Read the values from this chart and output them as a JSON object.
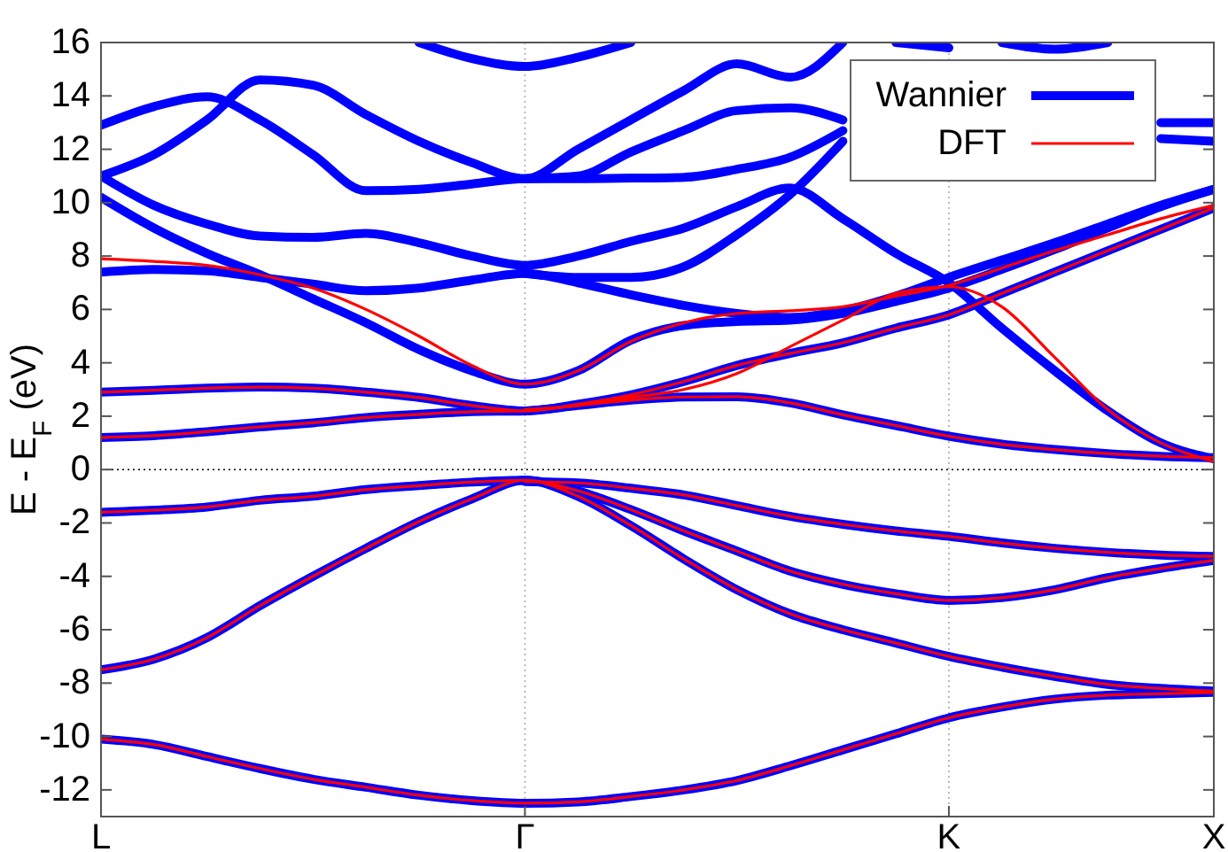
{
  "chart_data": {
    "type": "line",
    "ylabel": "E - E$_{F}$ (eV)",
    "categories": [
      "L",
      null,
      null,
      null,
      null,
      null,
      null,
      null,
      "Γ",
      null,
      null,
      null,
      null,
      null,
      null,
      null,
      "K",
      null,
      null,
      null,
      null,
      "X"
    ],
    "ylim": [
      -13,
      16
    ],
    "yticks": [
      -12,
      -10,
      -8,
      -6,
      -4,
      -2,
      0,
      2,
      4,
      6,
      8,
      10,
      12,
      14,
      16
    ],
    "grid": "x",
    "legend": "top right",
    "ref_lines": [
      {
        "axis": "y",
        "value": 0,
        "line_style": "dotted",
        "color": "#000000"
      }
    ],
    "series": [
      {
        "name": "Wannier",
        "color": "#0000ff",
        "values": [
          -10.1,
          -10.3,
          -10.75,
          -11.2,
          -11.6,
          -11.9,
          -12.2,
          -12.4,
          -12.5,
          -12.45,
          -12.25,
          -12.0,
          -11.65,
          -11.1,
          -10.5,
          -9.9,
          -9.3,
          -8.9,
          -8.6,
          -8.45,
          -8.4,
          -8.35
        ]
      },
      {
        "color": "#0000ff",
        "values": [
          -7.5,
          -7.1,
          -6.3,
          -5.1,
          -4.0,
          -2.95,
          -1.95,
          -1.1,
          -0.4,
          -1.0,
          -2.1,
          -3.35,
          -4.5,
          -5.4,
          -6.0,
          -6.5,
          -7.0,
          -7.4,
          -7.75,
          -8.05,
          -8.2,
          -8.3
        ]
      },
      {
        "color": "#0000ff",
        "values": [
          -1.6,
          -1.52,
          -1.4,
          -1.15,
          -1.0,
          -0.75,
          -0.6,
          -0.47,
          -0.4,
          -0.8,
          -1.5,
          -2.3,
          -3.05,
          -3.8,
          -4.3,
          -4.65,
          -4.9,
          -4.8,
          -4.5,
          -4.05,
          -3.7,
          -3.4
        ]
      },
      {
        "color": "#0000ff",
        "values": [
          null,
          null,
          null,
          null,
          null,
          null,
          null,
          null,
          -0.45,
          -0.5,
          -0.7,
          -0.95,
          -1.35,
          -1.75,
          -2.05,
          -2.3,
          -2.5,
          -2.75,
          -2.95,
          -3.1,
          -3.2,
          -3.25
        ]
      },
      {
        "color": "#0000ff",
        "values": [
          1.2,
          1.27,
          1.42,
          1.6,
          1.75,
          1.95,
          2.07,
          2.17,
          2.2,
          2.4,
          2.6,
          2.72,
          2.73,
          2.5,
          2.05,
          1.65,
          1.25,
          0.95,
          0.75,
          0.6,
          0.5,
          0.45
        ]
      },
      {
        "color": "#0000ff",
        "values": [
          2.9,
          2.97,
          3.05,
          3.09,
          3.05,
          2.9,
          2.7,
          2.4,
          2.2,
          2.45,
          2.8,
          3.3,
          3.9,
          4.35,
          4.75,
          5.3,
          5.8,
          6.6,
          7.4,
          8.2,
          9.0,
          9.8
        ]
      },
      {
        "color": "#0000ff",
        "values": [
          10.2,
          9.05,
          8.1,
          7.3,
          6.4,
          5.5,
          4.5,
          3.7,
          3.2,
          3.7,
          4.85,
          5.4,
          5.55,
          5.6,
          5.85,
          6.3,
          6.8,
          7.5,
          8.25,
          9.05,
          9.85,
          10.5
        ]
      },
      {
        "color": "#0000ff",
        "values": [
          12.9,
          13.6,
          13.97,
          13.1,
          11.8,
          10.45,
          10.5,
          10.7,
          10.9,
          10.9,
          10.92,
          10.95,
          11.25,
          11.7,
          12.7,
          null,
          null,
          null,
          null,
          null,
          12.4,
          12.3
        ]
      },
      {
        "color": "#0000ff",
        "values": [
          11.0,
          11.8,
          13.1,
          14.6,
          14.4,
          13.3,
          12.3,
          11.5,
          10.9,
          12.0,
          13.1,
          14.2,
          15.2,
          14.7,
          16.0,
          null,
          null,
          null,
          null,
          null,
          null,
          null
        ]
      },
      {
        "color": "#0000ff",
        "values": [
          null,
          null,
          null,
          null,
          null,
          null,
          null,
          null,
          10.9,
          11.0,
          11.9,
          12.7,
          13.45,
          13.55,
          13.1,
          null,
          null,
          null,
          null,
          null,
          13.0,
          13.0
        ]
      },
      {
        "color": "#0000ff",
        "values": [
          11.0,
          9.9,
          9.2,
          8.75,
          8.7,
          8.85,
          8.5,
          8.0,
          7.65,
          8.0,
          8.55,
          9.05,
          9.85,
          10.55,
          9.4,
          8.1,
          7.0,
          5.3,
          3.7,
          2.2,
          1.0,
          0.4
        ]
      },
      {
        "color": "#0000ff",
        "values": [
          7.4,
          7.5,
          7.45,
          7.2,
          6.95,
          6.7,
          6.8,
          7.1,
          7.35,
          7.0,
          6.55,
          6.15,
          5.85,
          5.7,
          5.95,
          6.5,
          7.2,
          7.85,
          8.5,
          9.2,
          9.9,
          10.5
        ]
      },
      {
        "color": "#0000ff",
        "values": [
          null,
          null,
          null,
          null,
          null,
          null,
          null,
          null,
          7.35,
          7.2,
          7.2,
          7.6,
          8.8,
          10.3,
          12.3,
          null,
          null,
          null,
          null,
          null,
          null,
          null
        ]
      },
      {
        "color": "#0000ff",
        "values": [
          null,
          null,
          null,
          null,
          null,
          null,
          16.0,
          15.4,
          15.1,
          15.45,
          16.0,
          null,
          null,
          null,
          null,
          null,
          null,
          null,
          null,
          null,
          null,
          null
        ]
      },
      {
        "color": "#0000ff",
        "values": [
          null,
          null,
          null,
          null,
          null,
          null,
          null,
          null,
          null,
          null,
          null,
          null,
          null,
          null,
          null,
          16.0,
          15.8,
          null,
          null,
          null,
          null,
          null
        ]
      },
      {
        "color": "#0000ff",
        "values": [
          null,
          null,
          null,
          null,
          null,
          null,
          null,
          null,
          null,
          null,
          null,
          null,
          null,
          null,
          null,
          null,
          null,
          16.0,
          15.75,
          16.0,
          null,
          null
        ]
      },
      {
        "name": "DFT",
        "color": "#ff0000",
        "values": [
          -10.1,
          -10.3,
          -10.75,
          -11.2,
          -11.6,
          -11.9,
          -12.2,
          -12.4,
          -12.5,
          -12.45,
          -12.25,
          -12.0,
          -11.65,
          -11.1,
          -10.5,
          -9.9,
          -9.3,
          -8.9,
          -8.6,
          -8.45,
          -8.4,
          -8.35
        ]
      },
      {
        "color": "#ff0000",
        "values": [
          -7.5,
          -7.1,
          -6.3,
          -5.1,
          -4.0,
          -2.95,
          -1.95,
          -1.1,
          -0.4,
          -1.0,
          -2.1,
          -3.35,
          -4.5,
          -5.4,
          -6.0,
          -6.5,
          -7.0,
          -7.4,
          -7.75,
          -8.05,
          -8.2,
          -8.3
        ]
      },
      {
        "color": "#ff0000",
        "values": [
          -1.6,
          -1.52,
          -1.4,
          -1.15,
          -1.0,
          -0.75,
          -0.6,
          -0.47,
          -0.4,
          -0.8,
          -1.5,
          -2.3,
          -3.05,
          -3.8,
          -4.3,
          -4.65,
          -4.9,
          -4.8,
          -4.5,
          -4.05,
          -3.7,
          -3.4
        ]
      },
      {
        "color": "#ff0000",
        "values": [
          null,
          null,
          null,
          null,
          null,
          null,
          null,
          null,
          -0.45,
          -0.5,
          -0.7,
          -0.95,
          -1.35,
          -1.75,
          -2.05,
          -2.3,
          -2.5,
          -2.75,
          -2.95,
          -3.1,
          -3.2,
          -3.25
        ]
      },
      {
        "color": "#ff0000",
        "values": [
          1.2,
          1.27,
          1.42,
          1.6,
          1.75,
          1.95,
          2.07,
          2.17,
          2.2,
          2.4,
          2.6,
          2.72,
          2.73,
          2.5,
          2.05,
          1.65,
          1.25,
          0.95,
          0.75,
          0.6,
          0.5,
          0.45
        ]
      },
      {
        "color": "#ff0000",
        "values": [
          2.9,
          2.97,
          3.05,
          3.09,
          3.05,
          2.9,
          2.7,
          2.4,
          2.2,
          2.45,
          2.8,
          3.3,
          3.9,
          4.35,
          4.75,
          5.3,
          5.8,
          6.6,
          7.4,
          8.2,
          9.0,
          9.8
        ]
      },
      {
        "color": "#ff0000",
        "values": [
          7.9,
          7.8,
          7.65,
          7.3,
          6.8,
          6.0,
          5.0,
          3.9,
          3.2,
          3.7,
          4.8,
          5.5,
          5.85,
          5.95,
          6.1,
          6.5,
          6.9,
          7.55,
          8.2,
          8.8,
          9.4,
          9.9
        ]
      },
      {
        "color": "#ff0000",
        "values": [
          null,
          null,
          null,
          null,
          null,
          null,
          null,
          null,
          2.25,
          2.4,
          2.7,
          3.0,
          3.6,
          4.6,
          5.6,
          6.6,
          6.85,
          6.1,
          4.2,
          2.25,
          1.0,
          0.3
        ]
      }
    ]
  }
}
